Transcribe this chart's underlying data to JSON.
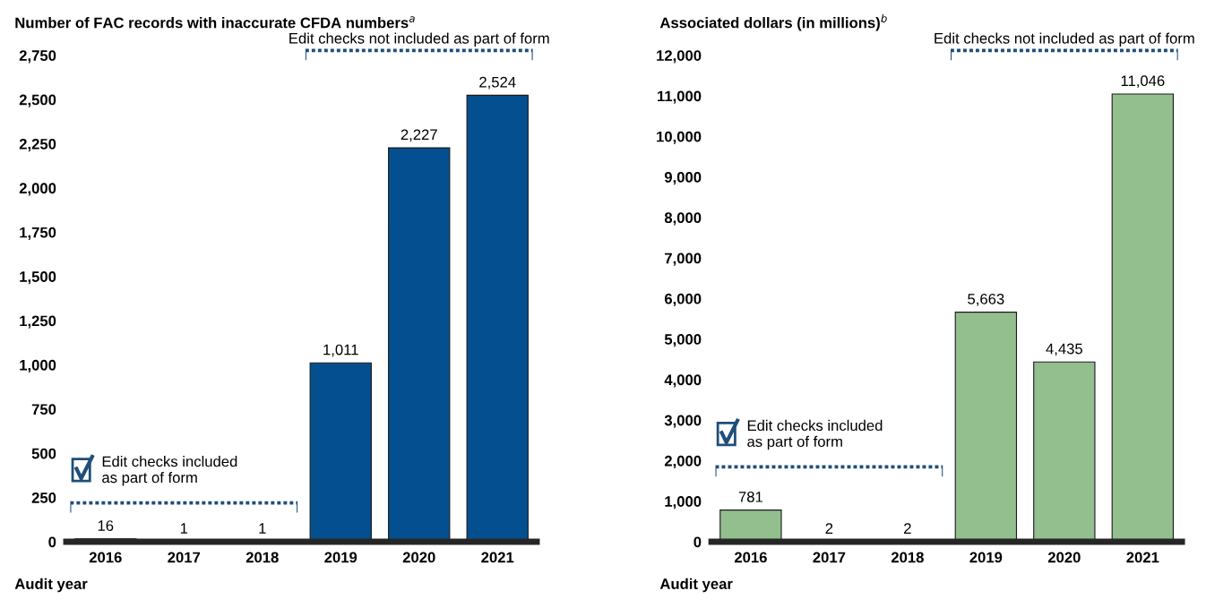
{
  "chart_data": [
    {
      "type": "bar",
      "title": "Number of FAC records with inaccurate CFDA numbers$^{a}$",
      "xlabel": "Audit year",
      "categories": [
        "2016",
        "2017",
        "2018",
        "2019",
        "2020",
        "2021"
      ],
      "values": [
        16,
        1,
        1,
        1011,
        2227,
        2524
      ],
      "color": "#044f8f",
      "ylim": [
        0,
        2750
      ],
      "yticks": [
        0,
        {
          "value": 250,
          "label": "250"
        },
        {
          "value": 500,
          "label": "500"
        },
        {
          "value": 750,
          "label": "750"
        },
        {
          "value": 1000,
          "label": "1,000"
        },
        {
          "value": 1250,
          "label": "1,250"
        },
        {
          "value": 1500,
          "label": "1,500"
        },
        {
          "value": 1750,
          "label": "1,750"
        },
        {
          "value": 2000,
          "label": "2,000"
        },
        {
          "value": 2250,
          "label": "2,250"
        },
        {
          "value": 2500,
          "label": "2,500"
        },
        {
          "value": 2750,
          "label": "2,750"
        }
      ],
      "value_labels": [
        "16",
        "1",
        "1",
        "1,011",
        "2,227",
        "2,524"
      ],
      "grid": false,
      "annotations": [
        "Edit checks included\nas part of form",
        "Edit checks not included as part of form"
      ]
    },
    {
      "type": "bar",
      "title": "Associated dollars (in millions)$^{b}$",
      "xlabel": "Audit year",
      "categories": [
        "2016",
        "2017",
        "2018",
        "2019",
        "2020",
        "2021"
      ],
      "values": [
        781,
        2,
        2,
        5663,
        4435,
        11046
      ],
      "color": "#93bf8f",
      "ylim": [
        0,
        12000
      ],
      "yticks": [
        0,
        {
          "value": 1000,
          "label": "1,000"
        },
        {
          "value": 2000,
          "label": "2,000"
        },
        {
          "value": 3000,
          "label": "3,000"
        },
        {
          "value": 4000,
          "label": "4,000"
        },
        {
          "value": 5000,
          "label": "5,000"
        },
        {
          "value": 6000,
          "label": "6,000"
        },
        {
          "value": 7000,
          "label": "7,000"
        },
        {
          "value": 8000,
          "label": "8,000"
        },
        {
          "value": 9000,
          "label": "9,000"
        },
        {
          "value": 10000,
          "label": "10,000"
        },
        {
          "value": 11000,
          "label": "11,000"
        },
        {
          "value": 12000,
          "label": "12,000"
        }
      ],
      "value_labels": [
        "781",
        "2",
        "2",
        "5,663",
        "4,435",
        "11,046"
      ],
      "grid": false,
      "annotations": [
        "Edit checks included\nas part of form",
        "Edit checks not included as part of form"
      ]
    }
  ]
}
